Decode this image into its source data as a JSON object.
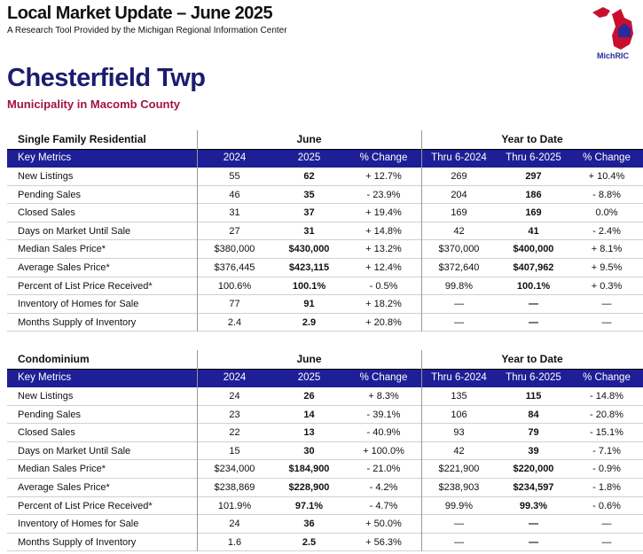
{
  "header": {
    "title": "Local Market Update – June 2025",
    "subtitle": "A Research Tool Provided by the Michigan Regional Information Center",
    "logo": "MichRIC"
  },
  "municipality": {
    "name": "Chesterfield Twp",
    "county": "Municipality in Macomb County"
  },
  "tables": [
    {
      "section": "Single Family Residential",
      "group1": "June",
      "group2": "Year to Date",
      "columns": [
        "Key Metrics",
        "2024",
        "2025",
        "% Change",
        "Thru 6-2024",
        "Thru 6-2025",
        "% Change"
      ],
      "rows": [
        [
          "New Listings",
          "55",
          "62",
          "+ 12.7%",
          "269",
          "297",
          "+ 10.4%"
        ],
        [
          "Pending Sales",
          "46",
          "35",
          "- 23.9%",
          "204",
          "186",
          "- 8.8%"
        ],
        [
          "Closed Sales",
          "31",
          "37",
          "+ 19.4%",
          "169",
          "169",
          "0.0%"
        ],
        [
          "Days on Market Until Sale",
          "27",
          "31",
          "+ 14.8%",
          "42",
          "41",
          "- 2.4%"
        ],
        [
          "Median Sales Price*",
          "$380,000",
          "$430,000",
          "+ 13.2%",
          "$370,000",
          "$400,000",
          "+ 8.1%"
        ],
        [
          "Average Sales Price*",
          "$376,445",
          "$423,115",
          "+ 12.4%",
          "$372,640",
          "$407,962",
          "+ 9.5%"
        ],
        [
          "Percent of List Price Received*",
          "100.6%",
          "100.1%",
          "- 0.5%",
          "99.8%",
          "100.1%",
          "+ 0.3%"
        ],
        [
          "Inventory of Homes for Sale",
          "77",
          "91",
          "+ 18.2%",
          "—",
          "—",
          "—"
        ],
        [
          "Months Supply of Inventory",
          "2.4",
          "2.9",
          "+ 20.8%",
          "—",
          "—",
          "—"
        ]
      ]
    },
    {
      "section": "Condominium",
      "group1": "June",
      "group2": "Year to Date",
      "columns": [
        "Key Metrics",
        "2024",
        "2025",
        "% Change",
        "Thru 6-2024",
        "Thru 6-2025",
        "% Change"
      ],
      "rows": [
        [
          "New Listings",
          "24",
          "26",
          "+ 8.3%",
          "135",
          "115",
          "- 14.8%"
        ],
        [
          "Pending Sales",
          "23",
          "14",
          "- 39.1%",
          "106",
          "84",
          "- 20.8%"
        ],
        [
          "Closed Sales",
          "22",
          "13",
          "- 40.9%",
          "93",
          "79",
          "- 15.1%"
        ],
        [
          "Days on Market Until Sale",
          "15",
          "30",
          "+ 100.0%",
          "42",
          "39",
          "- 7.1%"
        ],
        [
          "Median Sales Price*",
          "$234,000",
          "$184,900",
          "- 21.0%",
          "$221,900",
          "$220,000",
          "- 0.9%"
        ],
        [
          "Average Sales Price*",
          "$238,869",
          "$228,900",
          "- 4.2%",
          "$238,903",
          "$234,597",
          "- 1.8%"
        ],
        [
          "Percent of List Price Received*",
          "101.9%",
          "97.1%",
          "- 4.7%",
          "99.9%",
          "99.3%",
          "- 0.6%"
        ],
        [
          "Inventory of Homes for Sale",
          "24",
          "36",
          "+ 50.0%",
          "—",
          "—",
          "—"
        ],
        [
          "Months Supply of Inventory",
          "1.6",
          "2.5",
          "+ 56.3%",
          "—",
          "—",
          "—"
        ]
      ]
    }
  ]
}
